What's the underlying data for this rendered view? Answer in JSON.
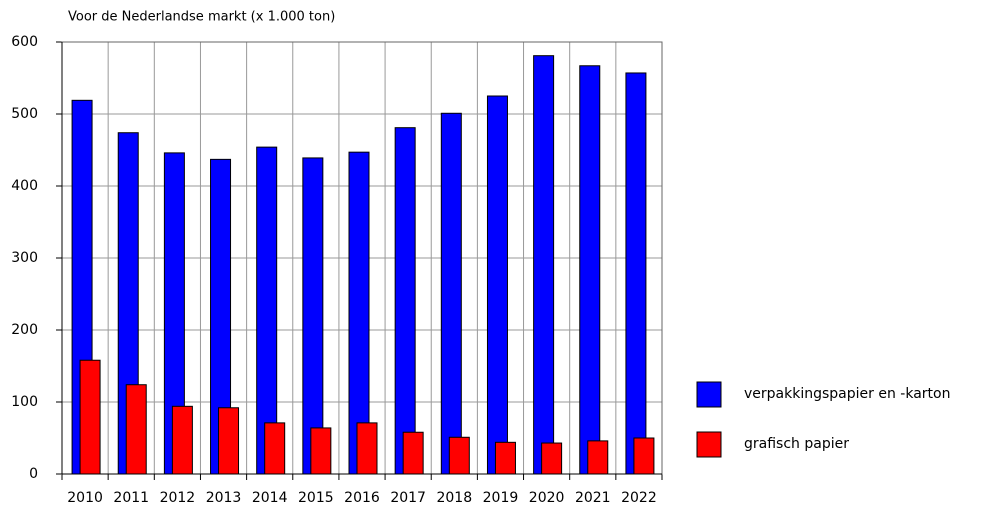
{
  "chart_data": {
    "type": "bar",
    "title": "Voor de Nederlandse markt (x 1.000 ton)",
    "categories": [
      "2010",
      "2011",
      "2012",
      "2013",
      "2014",
      "2015",
      "2016",
      "2017",
      "2018",
      "2019",
      "2020",
      "2021",
      "2022"
    ],
    "series": [
      {
        "name": "verpakkingspapier en -karton",
        "color": "#0000ff",
        "values": [
          519,
          474,
          446,
          437,
          454,
          439,
          447,
          481,
          501,
          525,
          581,
          567,
          557
        ]
      },
      {
        "name": "grafisch papier",
        "color": "#ff0000",
        "values": [
          158,
          124,
          94,
          92,
          71,
          64,
          71,
          58,
          51,
          44,
          43,
          46,
          50
        ]
      }
    ],
    "ylim": [
      0,
      600
    ],
    "yticks": [
      0,
      100,
      200,
      300,
      400,
      500,
      600
    ],
    "grid": true
  }
}
